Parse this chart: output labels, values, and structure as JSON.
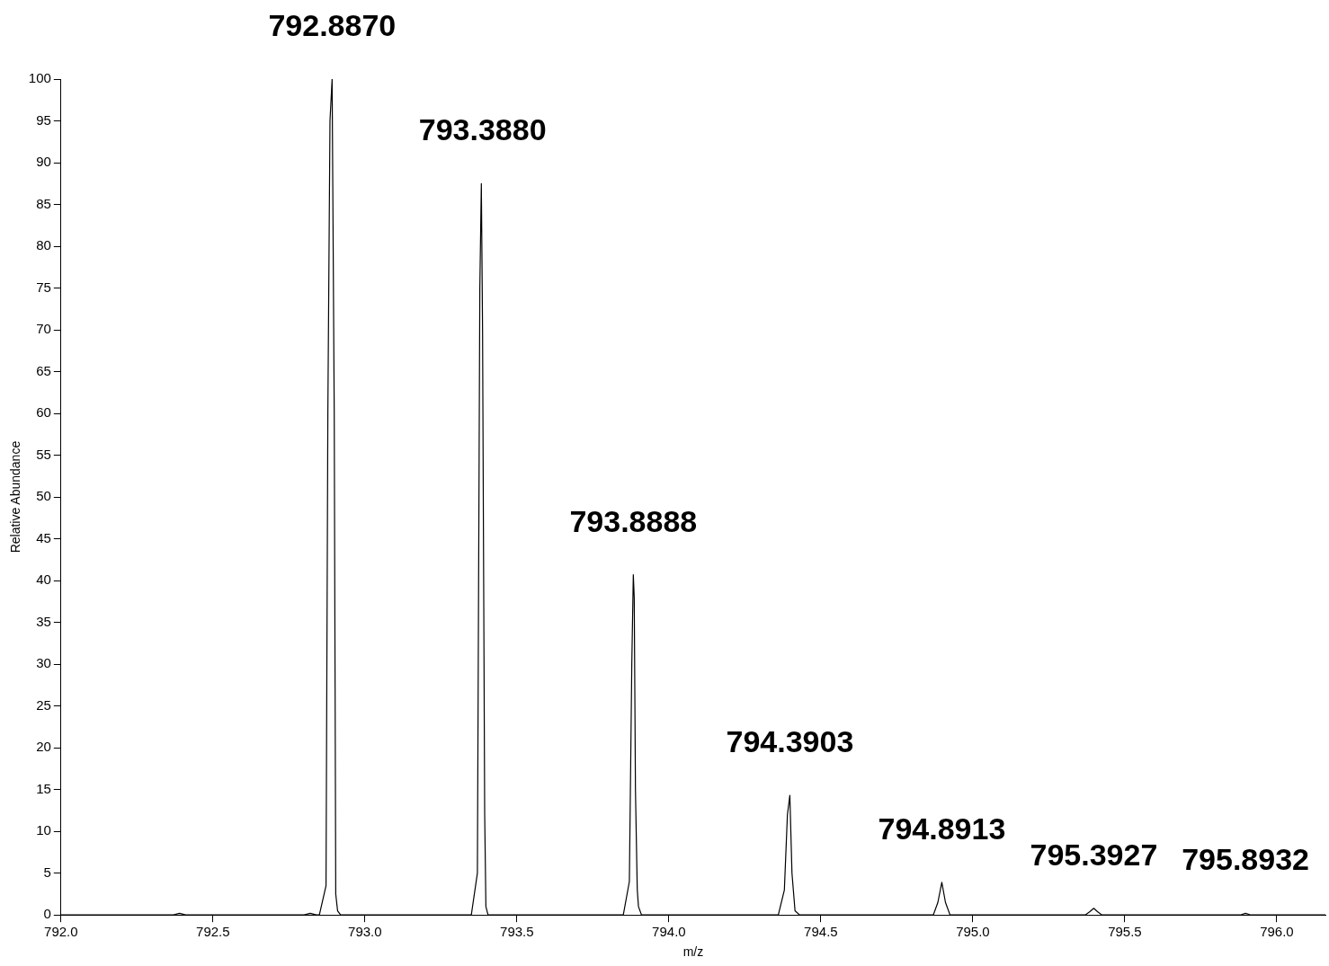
{
  "chart_data": {
    "type": "line",
    "xlabel": "m/z",
    "ylabel": "Relative Abundance",
    "xlim": [
      792.0,
      796.16
    ],
    "ylim": [
      0,
      100
    ],
    "xticks": [
      {
        "value": 792,
        "label": "792.0"
      },
      {
        "value": 792.5,
        "label": "792.5"
      },
      {
        "value": 793,
        "label": "793.0"
      },
      {
        "value": 793.5,
        "label": "793.5"
      },
      {
        "value": 794,
        "label": "794.0"
      },
      {
        "value": 794.5,
        "label": "794.5"
      },
      {
        "value": 795,
        "label": "795.0"
      },
      {
        "value": 795.5,
        "label": "795.5"
      },
      {
        "value": 796,
        "label": "796.0"
      }
    ],
    "yticks": [
      0,
      5,
      10,
      15,
      20,
      25,
      30,
      35,
      40,
      45,
      50,
      55,
      60,
      65,
      70,
      75,
      80,
      85,
      90,
      95,
      100
    ],
    "grid": false,
    "legend": false,
    "marker": "none",
    "line_style": "solid",
    "series": [
      {
        "color": "#000000",
        "x": [
          792.0,
          792.37,
          792.39,
          792.41,
          792.8,
          792.82,
          792.84,
          792.85,
          792.872,
          792.878,
          792.885,
          792.892,
          792.899,
          792.904,
          792.91,
          792.92,
          793.35,
          793.37,
          793.378,
          793.383,
          793.387,
          793.394,
          793.398,
          793.405,
          793.42,
          793.85,
          793.87,
          793.878,
          793.883,
          793.886,
          793.89,
          793.896,
          793.9,
          793.91,
          793.92,
          794.36,
          794.38,
          794.39,
          794.398,
          794.405,
          794.415,
          794.43,
          794.87,
          794.885,
          794.898,
          794.91,
          794.925,
          795.37,
          795.385,
          795.398,
          795.41,
          795.425,
          795.88,
          795.897,
          795.915,
          796.16
        ],
        "values": [
          0,
          0,
          0.2,
          0,
          0,
          0.2,
          0,
          0,
          3.5,
          60,
          95,
          100,
          60,
          2.5,
          0.5,
          0,
          0,
          5,
          75,
          87.5,
          70,
          12,
          1,
          0,
          0,
          0,
          4,
          30,
          40.7,
          38,
          15,
          3,
          1,
          0,
          0,
          0,
          3,
          12,
          14.3,
          5,
          0.5,
          0,
          0,
          1.5,
          3.9,
          1.5,
          0,
          0,
          0.4,
          0.8,
          0.4,
          0,
          0,
          0.2,
          0,
          0
        ]
      }
    ],
    "annotations": [
      {
        "text": "792.8870",
        "x": 792.892,
        "y": 100
      },
      {
        "text": "793.3880",
        "x": 793.387,
        "y": 87.5
      },
      {
        "text": "793.8888",
        "x": 793.883,
        "y": 40.7
      },
      {
        "text": "794.3903",
        "x": 794.398,
        "y": 14.3
      },
      {
        "text": "794.8913",
        "x": 794.898,
        "y": 3.9
      },
      {
        "text": "795.3927",
        "x": 795.398,
        "y": 0.8
      },
      {
        "text": "795.8932",
        "x": 795.897,
        "y": 0.2
      }
    ]
  }
}
